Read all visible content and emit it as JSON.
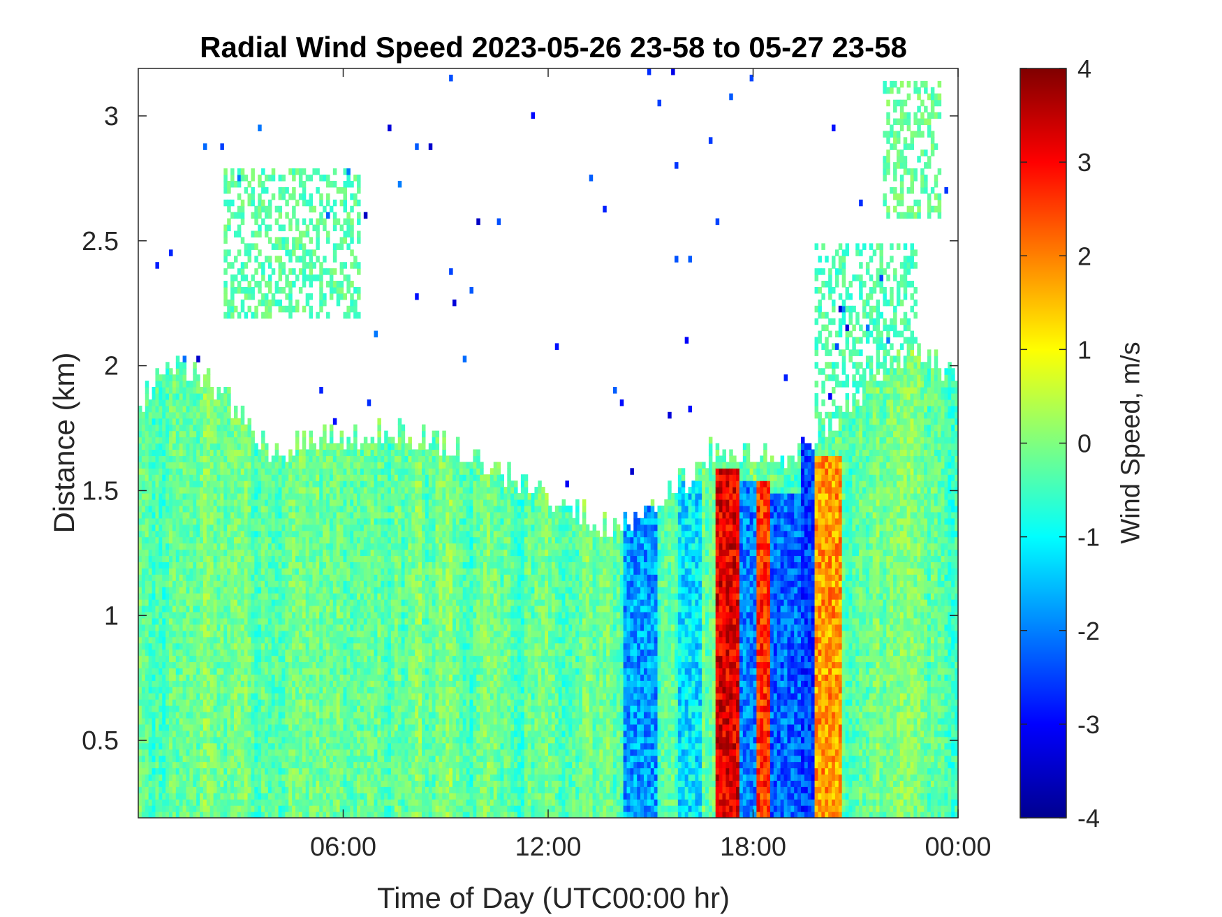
{
  "chart_data": {
    "type": "heatmap",
    "title": "Radial Wind Speed 2023-05-26 23-58 to 05-27 23-58",
    "xlabel": "Time of Day (UTC00:00 hr)",
    "ylabel": "Distance (km)",
    "xlim": [
      0,
      24
    ],
    "ylim": [
      0.19,
      3.19
    ],
    "x_ticks": [
      6,
      12,
      18,
      24
    ],
    "x_tick_labels": [
      "06:00",
      "12:00",
      "18:00",
      "00:00"
    ],
    "y_ticks": [
      0.5,
      1,
      1.5,
      2,
      2.5,
      3
    ],
    "y_tick_labels": [
      "0.5",
      "1",
      "1.5",
      "2",
      "2.5",
      "3"
    ],
    "colorbar": {
      "label": "Wind Speed, m/s",
      "colormap": "jet",
      "range": [
        -4,
        4
      ],
      "ticks": [
        -4,
        -3,
        -2,
        -1,
        0,
        1,
        2,
        3,
        4
      ],
      "tick_labels": [
        "-4",
        "-3",
        "-2",
        "-1",
        "0",
        "1",
        "2",
        "3",
        "4"
      ]
    },
    "grid": false,
    "data_top_km_by_hour": {
      "hours": [
        0,
        1,
        2,
        3,
        4,
        5,
        6,
        7,
        8,
        9,
        10,
        11,
        12,
        13,
        14,
        15,
        16,
        17,
        18,
        19,
        20,
        21,
        22,
        23,
        24
      ],
      "top_km": [
        1.85,
        2.0,
        1.95,
        1.8,
        1.65,
        1.7,
        1.72,
        1.75,
        1.72,
        1.7,
        1.62,
        1.55,
        1.48,
        1.4,
        1.35,
        1.45,
        1.55,
        1.68,
        1.65,
        1.62,
        1.75,
        1.85,
        2.0,
        2.05,
        1.95
      ]
    },
    "speed_regions": [
      {
        "label": "background",
        "x_range": [
          0,
          24
        ],
        "y_range": [
          0.19,
          2.05
        ],
        "value_m_s": -0.2
      },
      {
        "label": "negative-band-1",
        "x_range": [
          14.2,
          15.2
        ],
        "y_range": [
          0.19,
          1.45
        ],
        "value_m_s": -1.8
      },
      {
        "label": "negative-band-2",
        "x_range": [
          15.8,
          16.5
        ],
        "y_range": [
          0.19,
          1.55
        ],
        "value_m_s": -1.2
      },
      {
        "label": "positive-band-1",
        "x_range": [
          16.9,
          17.6
        ],
        "y_range": [
          0.19,
          1.6
        ],
        "value_m_s": 3.2
      },
      {
        "label": "negative-band-3",
        "x_range": [
          17.6,
          18.1
        ],
        "y_range": [
          0.19,
          1.55
        ],
        "value_m_s": -2.0
      },
      {
        "label": "positive-band-2",
        "x_range": [
          18.1,
          18.5
        ],
        "y_range": [
          0.19,
          1.55
        ],
        "value_m_s": 2.6
      },
      {
        "label": "negative-band-4",
        "x_range": [
          18.5,
          19.4
        ],
        "y_range": [
          0.19,
          1.5
        ],
        "value_m_s": -2.2
      },
      {
        "label": "negative-band-5",
        "x_range": [
          19.4,
          19.8
        ],
        "y_range": [
          0.19,
          1.75
        ],
        "value_m_s": -2.5
      },
      {
        "label": "positive-band-3",
        "x_range": [
          19.8,
          20.6
        ],
        "y_range": [
          0.19,
          1.65
        ],
        "value_m_s": 1.8
      },
      {
        "label": "cloud-layer-1",
        "x_range": [
          2.5,
          6.5
        ],
        "y_range": [
          2.2,
          2.8
        ],
        "value_m_s": -0.3
      },
      {
        "label": "cloud-layer-2",
        "x_range": [
          19.8,
          22.8
        ],
        "y_range": [
          1.8,
          2.5
        ],
        "value_m_s": -0.4
      },
      {
        "label": "cloud-layer-3",
        "x_range": [
          21.8,
          23.5
        ],
        "y_range": [
          2.6,
          3.15
        ],
        "value_m_s": -0.2
      }
    ]
  }
}
